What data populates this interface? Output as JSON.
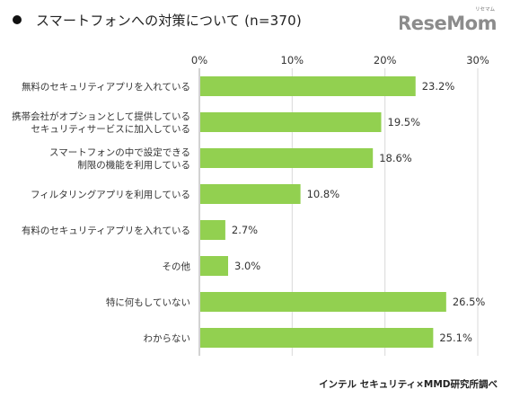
{
  "title": "スマートフォンへの対策について (n=370)",
  "logo": {
    "text": "ReseMom",
    "ruby": "リセマム"
  },
  "source": "インテル セキュリティ×MMD研究所調べ",
  "colors": {
    "bar": "#92d050",
    "grid": "#d9d9d9",
    "axis": "#a6a6a6"
  },
  "chart_data": {
    "type": "bar",
    "orientation": "horizontal",
    "title": "スマートフォンへの対策について (n=370)",
    "xlim": [
      0,
      30
    ],
    "ticks": [
      "0%",
      "10%",
      "20%",
      "30%"
    ],
    "tick_values": [
      0,
      10,
      20,
      30
    ],
    "grid": true,
    "categories": [
      [
        "無料のセキュリティアプリを入れている"
      ],
      [
        "携帯会社がオプションとして提供している",
        "セキュリティサービスに加入している"
      ],
      [
        "スマートフォンの中で設定できる",
        "制限の機能を利用している"
      ],
      [
        "フィルタリングアプリを利用している"
      ],
      [
        "有料のセキュリティアプリを入れている"
      ],
      [
        "その他"
      ],
      [
        "特に何もしていない"
      ],
      [
        "わからない"
      ]
    ],
    "values": [
      23.2,
      19.5,
      18.6,
      10.8,
      2.7,
      3.0,
      26.5,
      25.1
    ],
    "value_labels": [
      "23.2%",
      "19.5%",
      "18.6%",
      "10.8%",
      "2.7%",
      "3.0%",
      "26.5%",
      "25.1%"
    ]
  }
}
